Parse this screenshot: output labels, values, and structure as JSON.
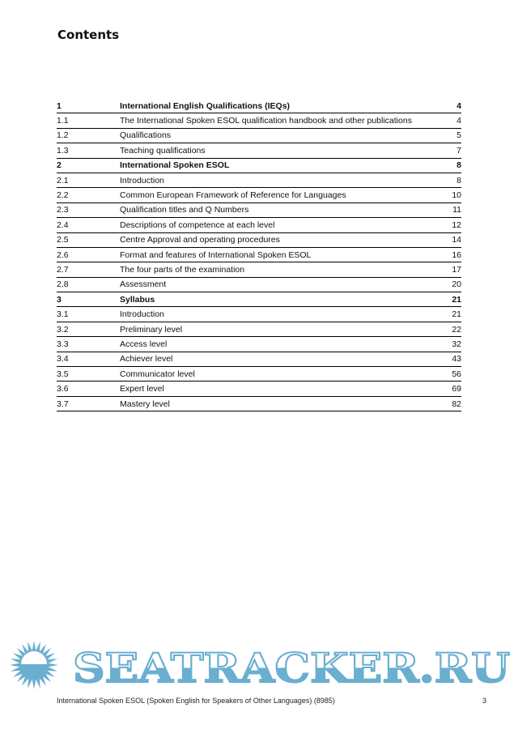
{
  "page_title": "Contents",
  "toc": [
    {
      "num": "1",
      "title": "International English Qualifications (IEQs)",
      "page": "4",
      "major": true
    },
    {
      "num": "1.1",
      "title": "The International Spoken ESOL qualification handbook and other publications",
      "page": "4"
    },
    {
      "num": "1.2",
      "title": "Qualifications",
      "page": "5"
    },
    {
      "num": "1.3",
      "title": "Teaching qualifications",
      "page": "7"
    },
    {
      "num": "2",
      "title": "International Spoken ESOL",
      "page": "8",
      "major": true
    },
    {
      "num": "2.1",
      "title": "Introduction",
      "page": "8"
    },
    {
      "num": "2.2",
      "title": "Common European Framework of Reference for Languages",
      "page": "10"
    },
    {
      "num": "2.3",
      "title": "Qualification titles and Q Numbers",
      "page": "11"
    },
    {
      "num": "2.4",
      "title": "Descriptions of competence at each level",
      "page": "12"
    },
    {
      "num": "2.5",
      "title": "Centre Approval and operating procedures",
      "page": "14"
    },
    {
      "num": "2.6",
      "title": "Format and features of International Spoken ESOL",
      "page": "16"
    },
    {
      "num": "2.7",
      "title": "The four parts of the examination",
      "page": "17"
    },
    {
      "num": "2.8",
      "title": "Assessment",
      "page": "20"
    },
    {
      "num": "3",
      "title": "Syllabus",
      "page": "21",
      "major": true
    },
    {
      "num": "3.1",
      "title": "Introduction",
      "page": "21"
    },
    {
      "num": "3.2",
      "title": "Preliminary level",
      "page": "22"
    },
    {
      "num": "3.3",
      "title": "Access level",
      "page": "32"
    },
    {
      "num": "3.4",
      "title": "Achiever level",
      "page": "43"
    },
    {
      "num": "3.5",
      "title": "Communicator level",
      "page": "56"
    },
    {
      "num": "3.6",
      "title": "Expert level",
      "page": "69"
    },
    {
      "num": "3.7",
      "title": "Mastery level",
      "page": "82"
    }
  ],
  "footer": {
    "text": "International Spoken ESOL (Spoken English for Speakers of Other Languages) (8985)",
    "page_number": "3"
  },
  "watermark": {
    "text": "SEATRACKER.RU",
    "color": "#6aaed0",
    "icon": "sun-icon"
  }
}
